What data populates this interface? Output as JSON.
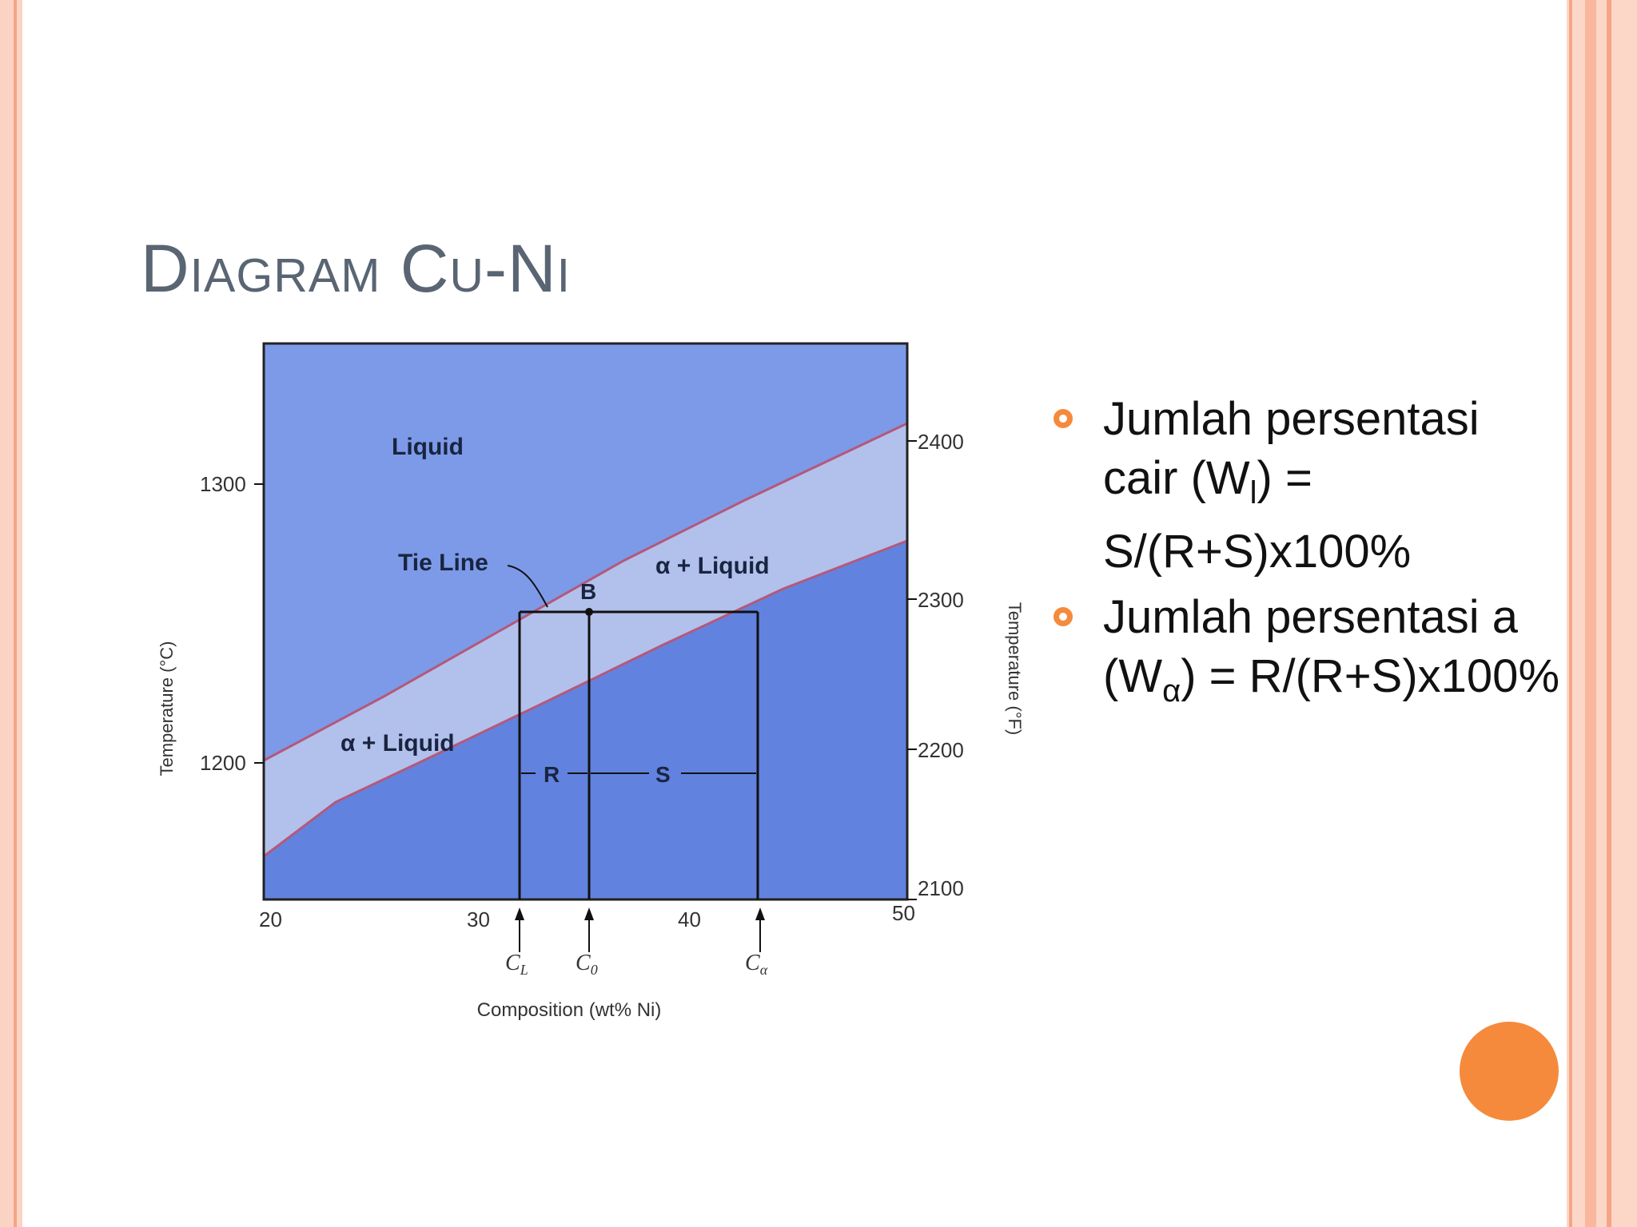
{
  "title": "Diagram Cu-Ni",
  "diagram": {
    "region_labels": {
      "liquid": "Liquid",
      "alpha_liquid_top": "α + Liquid",
      "alpha_liquid_bottom": "α + Liquid",
      "tie_line": "Tie Line",
      "point_b": "B",
      "r": "R",
      "s": "S"
    },
    "x_axis": {
      "label": "Composition (wt% Ni)",
      "ticks": [
        "20",
        "30",
        "40",
        "50"
      ],
      "markers": [
        "C",
        "C",
        "C"
      ],
      "marker_subs": [
        "L",
        "0",
        "α"
      ]
    },
    "y_axis_left": {
      "label": "Temperature (°C)",
      "ticks": [
        "1300",
        "1200"
      ]
    },
    "y_axis_right": {
      "label": "Temperature (°F)",
      "ticks": [
        "2400",
        "2300",
        "2200",
        "2100"
      ]
    },
    "colors": {
      "liquid": "#7c9ae8",
      "two_phase": "#b2c0ec",
      "solid": "#6183df",
      "boundary": "#b5587a"
    }
  },
  "bullets": [
    {
      "text": "Jumlah persentasi cair (W",
      "sub": "l",
      "after": ") = S/(R+S)x100%"
    },
    {
      "text": "Jumlah persentasi a (W",
      "sub": "α",
      "after": ") = R/(R+S)x100%"
    }
  ]
}
